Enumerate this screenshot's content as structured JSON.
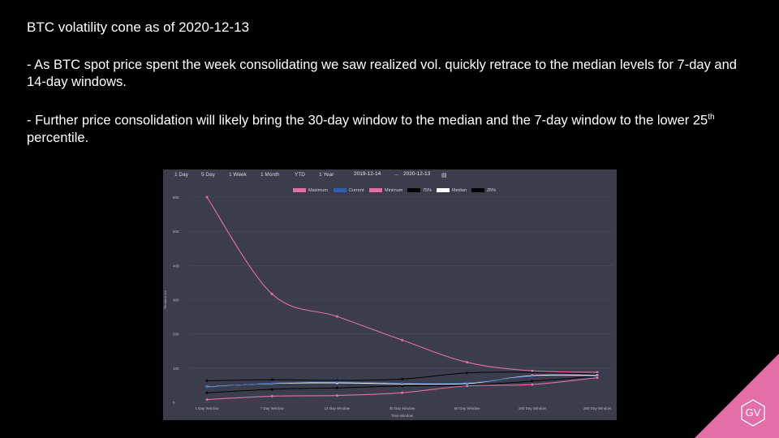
{
  "slide": {
    "title": "BTC volatility  cone as of 2020-12-13",
    "bullet1": "- As BTC spot price spent the week consolidating we saw realized vol. quickly retrace to the median levels for 7-day and 14-day windows.",
    "bullet2_main": "- Further price consolidation will likely bring the 30-day window to the median and the 7-day window to the lower 25",
    "bullet2_sup": "th",
    "bullet2_end": " percentile.",
    "logo_text": "GV"
  },
  "toolbar": {
    "ranges": [
      "1 Day",
      "5 Day",
      "1 Week",
      "1 Month",
      "YTD",
      "1 Year"
    ],
    "date_from": "2019-12-14",
    "date_sep": "...",
    "date_to": "2020-12-13",
    "calendar_icon": "calendar-icon"
  },
  "colors": {
    "maximum": "#e46fa8",
    "current": "#2f5fb0",
    "minimum": "#e46fa8",
    "p75": "#000000",
    "median": "#ffffff",
    "p25": "#000000",
    "panel": "#3b3d4c",
    "logo": "#e46fa8"
  },
  "chart_data": {
    "type": "line",
    "title": "",
    "xlabel": "Time Window",
    "ylabel": "Realized Vol",
    "ylim": [
      0,
      600
    ],
    "yticks": [
      0,
      100,
      200,
      300,
      400,
      500,
      600
    ],
    "categories": [
      "1 Day Window",
      "7 Day Window",
      "14 Day Window",
      "30 Day Window",
      "60 Day Window",
      "180 Day Window",
      "360 Day Window"
    ],
    "grid": true,
    "legend_placement": "top-center",
    "series": [
      {
        "name": "Maximum",
        "key": "maximum",
        "values": [
          600,
          317,
          251,
          182,
          117,
          92,
          88
        ]
      },
      {
        "name": "Current",
        "key": "current",
        "values": [
          44,
          56,
          60,
          56,
          57,
          76,
          76
        ]
      },
      {
        "name": "Minimum",
        "key": "minimum",
        "values": [
          8,
          18,
          20,
          28,
          48,
          52,
          72
        ]
      },
      {
        "name": "75%",
        "key": "p75",
        "values": [
          63,
          66,
          64,
          68,
          86,
          88,
          82
        ]
      },
      {
        "name": "Median",
        "key": "median",
        "values": [
          45,
          55,
          57,
          54,
          55,
          78,
          79
        ]
      },
      {
        "name": "25%",
        "key": "p25",
        "values": [
          28,
          38,
          42,
          48,
          50,
          62,
          76
        ]
      }
    ]
  }
}
